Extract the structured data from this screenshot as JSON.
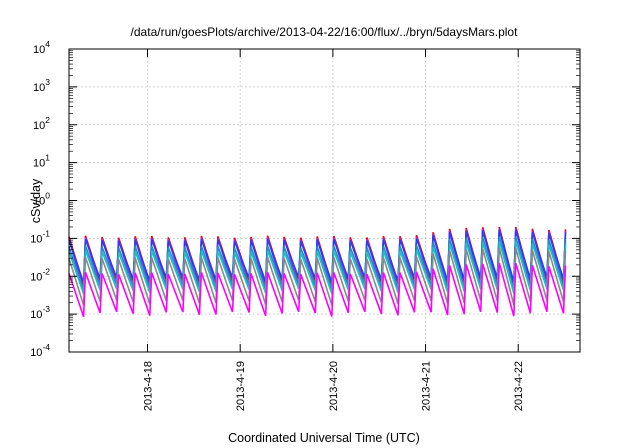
{
  "chart_data": {
    "type": "line",
    "title": "/data/run/goesPlots/archive/2013-04-22/16:00/flux/../bryn/5daysMars.plot",
    "xlabel": "Coordinated Universal Time (UTC)",
    "ylabel": "cSv/day",
    "yscale": "log",
    "ylim": [
      0.0001,
      10000
    ],
    "xlim": [
      "2013-04-17T03:40",
      "2013-04-22T16:00"
    ],
    "grid": true,
    "x_ticks": [
      "2013-4-18",
      "2013-4-19",
      "2013-4-20",
      "2013-4-21",
      "2013-4-22"
    ],
    "y_ticks": [
      {
        "base": "10",
        "exp": "-4"
      },
      {
        "base": "10",
        "exp": "-3"
      },
      {
        "base": "10",
        "exp": "-2"
      },
      {
        "base": "10",
        "exp": "-1"
      },
      {
        "base": "10",
        "exp": "0"
      },
      {
        "base": "10",
        "exp": "1"
      },
      {
        "base": "10",
        "exp": "2"
      },
      {
        "base": "10",
        "exp": "3"
      },
      {
        "base": "10",
        "exp": "4"
      }
    ],
    "series": [
      {
        "color": "#ee0000",
        "peak": 0.11,
        "trough": 0.007
      },
      {
        "color": "#aa2ad0",
        "peak": 0.1,
        "trough": 0.005
      },
      {
        "color": "#2040ff",
        "peak": 0.09,
        "trough": 0.008
      },
      {
        "color": "#1f8fd0",
        "peak": 0.06,
        "trough": 0.005
      },
      {
        "color": "#20c0c0",
        "peak": 0.045,
        "trough": 0.004
      },
      {
        "color": "#8a8a8a",
        "peak": 0.03,
        "trough": 0.002
      },
      {
        "color": "#ff00ff",
        "peak": 0.012,
        "trough": 0.001
      }
    ]
  }
}
